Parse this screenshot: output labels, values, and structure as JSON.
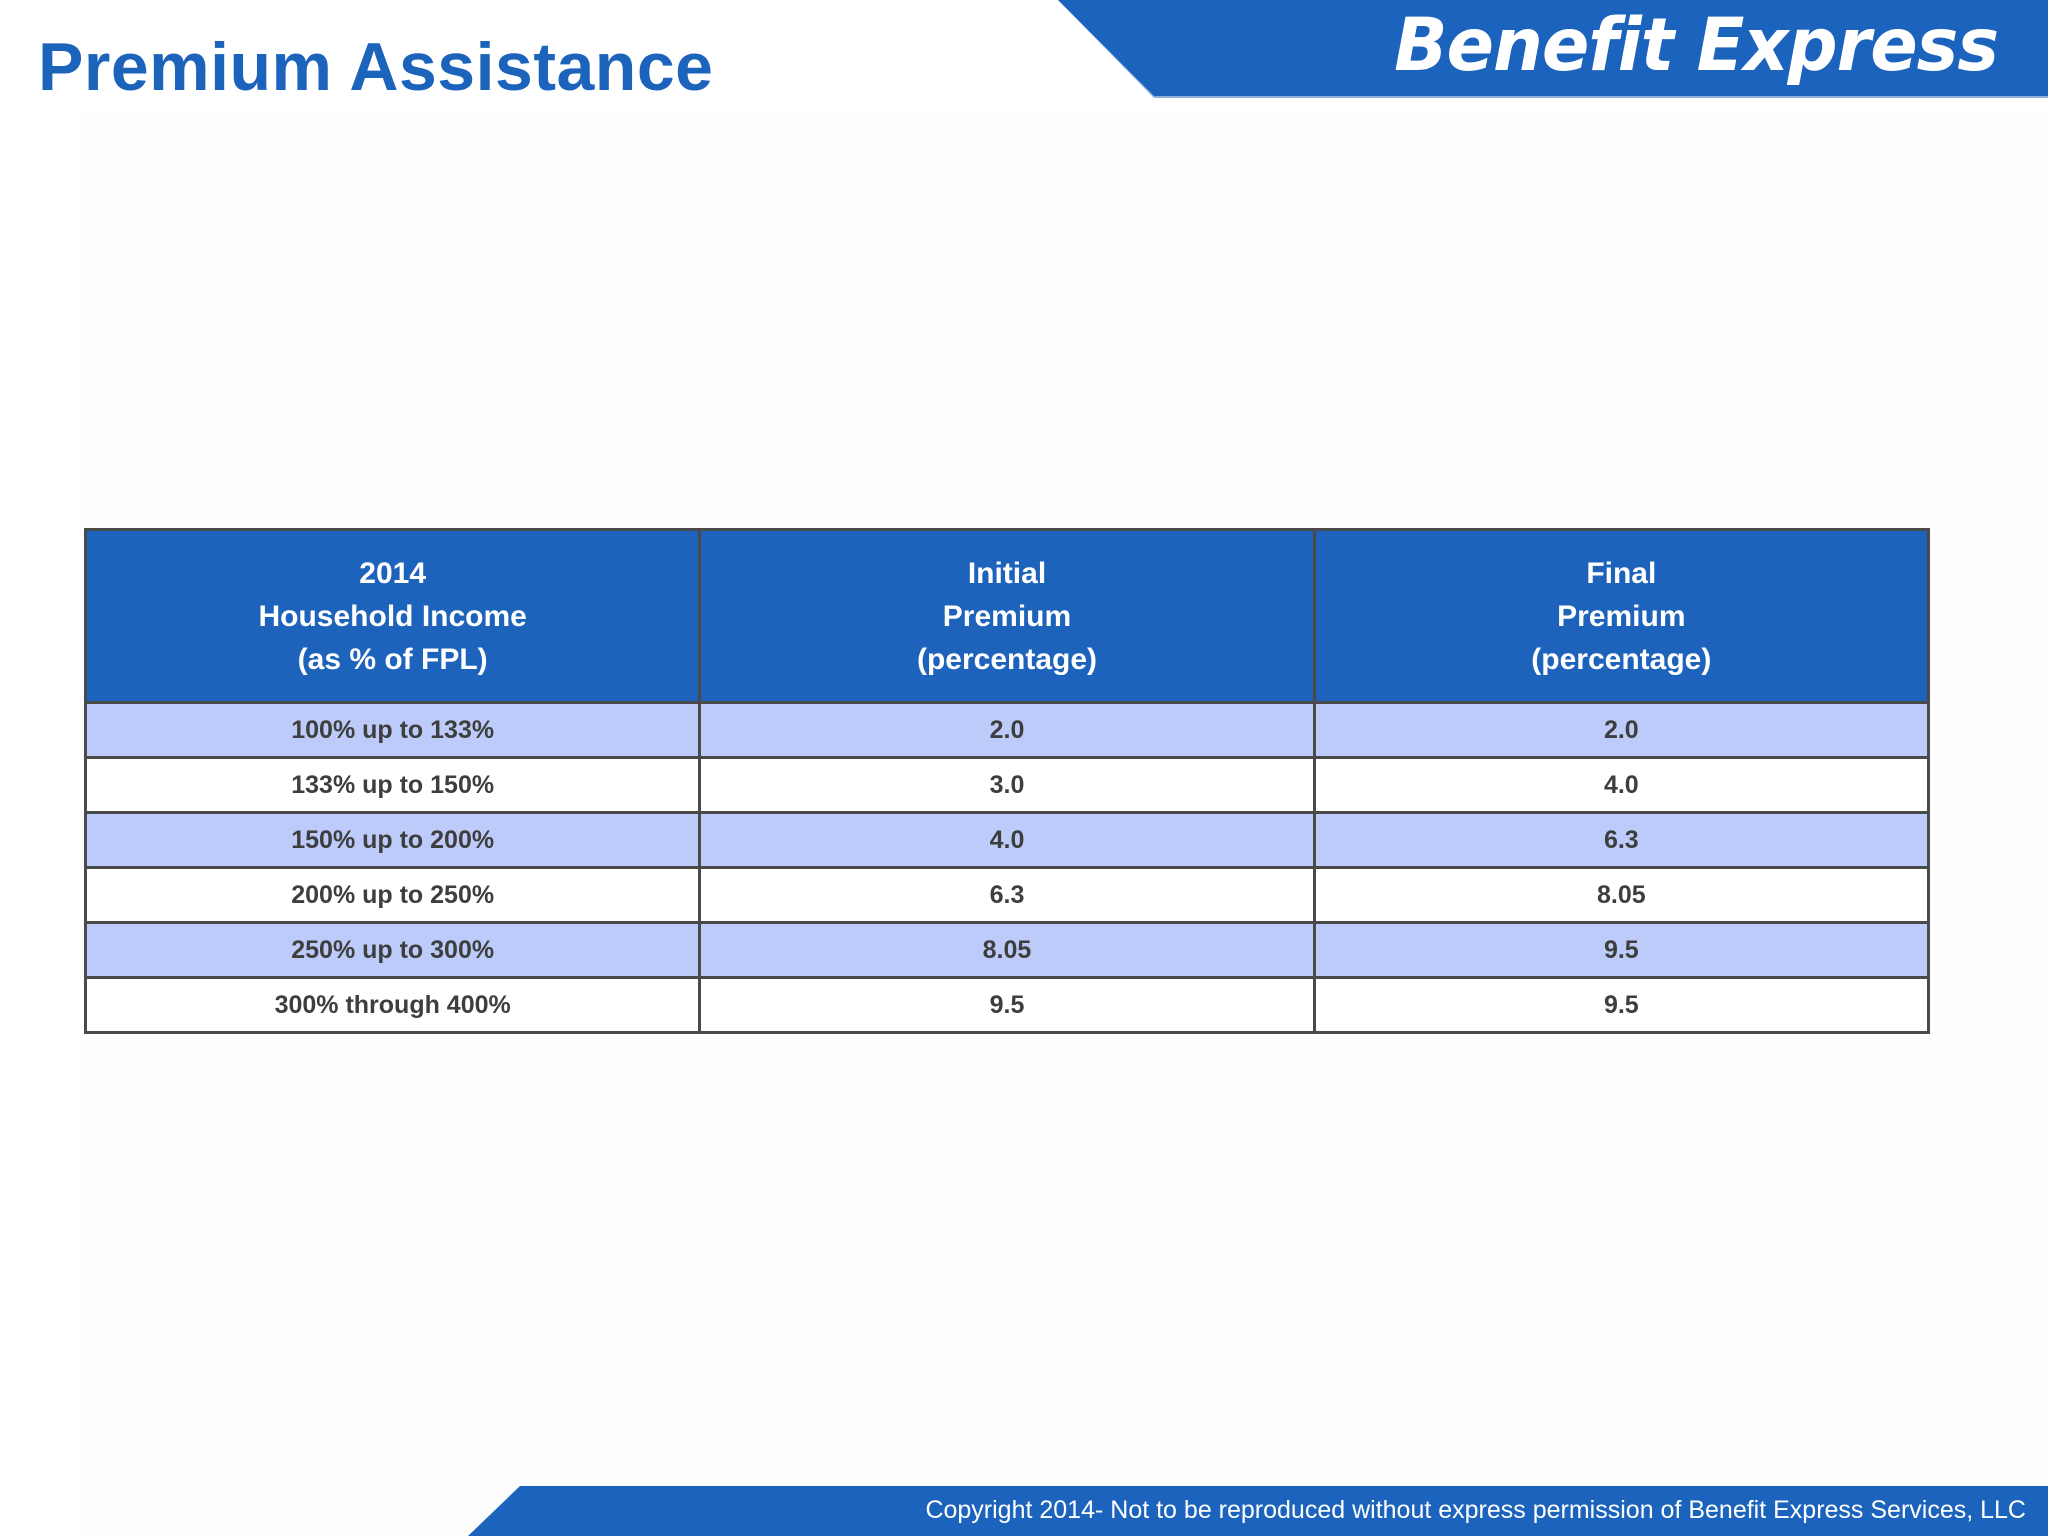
{
  "slide": {
    "title": "Premium Assistance"
  },
  "brand": {
    "logo_text": "Benefit Express",
    "accent_color": "#1b63bc",
    "row_highlight_color": "#bccbf9"
  },
  "table": {
    "headers": [
      [
        "2014",
        "Household Income",
        "(as % of FPL)"
      ],
      [
        "Initial",
        "Premium",
        "(percentage)"
      ],
      [
        "Final",
        "Premium",
        "(percentage)"
      ]
    ],
    "rows": [
      [
        "100% up to 133%",
        "2.0",
        "2.0"
      ],
      [
        "133% up to 150%",
        "3.0",
        "4.0"
      ],
      [
        "150% up to 200%",
        "4.0",
        "6.3"
      ],
      [
        "200% up to 250%",
        "6.3",
        "8.05"
      ],
      [
        "250% up to 300%",
        "8.05",
        "9.5"
      ],
      [
        "300% through 400%",
        "9.5",
        "9.5"
      ]
    ]
  },
  "footer": {
    "copyright": "Copyright 2014- Not to be reproduced without express permission of Benefit Express Services, LLC"
  }
}
